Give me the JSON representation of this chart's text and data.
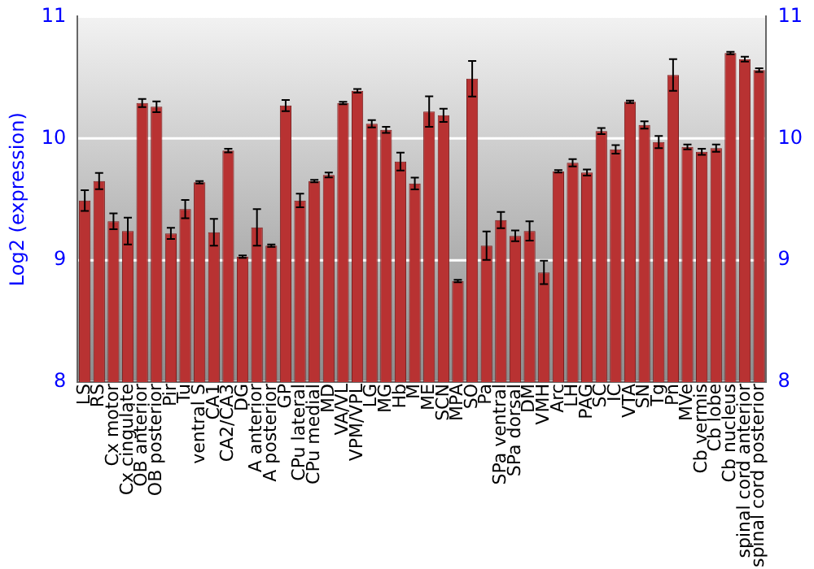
{
  "chart_data": {
    "type": "bar",
    "ylabel": "Log2 (expression)",
    "categories": [
      "LS",
      "RS",
      "Cx motor",
      "Cx cingulate",
      "OB anterior",
      "OB posterior",
      "Pir",
      "Tu",
      "ventral S",
      "CA1",
      "CA2/CA3",
      "DG",
      "A anterior",
      "A posterior",
      "GP",
      "CPu lateral",
      "CPu medial",
      "MD",
      "VA/VL",
      "VPM/VPL",
      "LG",
      "MG",
      "Hb",
      "M",
      "ME",
      "SCN",
      "MPA",
      "SO",
      "Pa",
      "SPa ventral",
      "SPa dorsal",
      "DM",
      "VMH",
      "Arc",
      "LH",
      "PAG",
      "SC",
      "IC",
      "VTA",
      "SN",
      "Tg",
      "Pn",
      "MVe",
      "Cb vermis",
      "Cb lobe",
      "Cb nucleus",
      "spinal cord anterior",
      "spinal cord posterior"
    ],
    "values": [
      9.49,
      9.65,
      9.32,
      9.24,
      10.29,
      10.26,
      9.22,
      9.42,
      9.64,
      9.23,
      9.9,
      9.03,
      9.27,
      9.12,
      10.27,
      9.49,
      9.65,
      9.7,
      10.29,
      10.39,
      10.12,
      10.07,
      9.81,
      9.63,
      10.22,
      10.19,
      8.83,
      10.49,
      9.12,
      9.33,
      9.2,
      9.24,
      8.9,
      9.73,
      9.8,
      9.72,
      10.06,
      9.91,
      10.3,
      10.11,
      9.97,
      10.52,
      9.93,
      9.89,
      9.92,
      10.7,
      10.65,
      10.56
    ],
    "errors": [
      0.085,
      0.067,
      0.065,
      0.11,
      0.033,
      0.044,
      0.046,
      0.075,
      0.01,
      0.11,
      0.015,
      0.01,
      0.15,
      0.01,
      0.046,
      0.056,
      0.01,
      0.02,
      0.01,
      0.015,
      0.03,
      0.025,
      0.073,
      0.048,
      0.125,
      0.054,
      0.01,
      0.146,
      0.117,
      0.067,
      0.044,
      0.079,
      0.096,
      0.01,
      0.03,
      0.025,
      0.025,
      0.035,
      0.01,
      0.03,
      0.05,
      0.13,
      0.02,
      0.025,
      0.03,
      0.01,
      0.02,
      0.015
    ],
    "color": "#b83232",
    "ylim": [
      8,
      11
    ],
    "yticks": [
      8,
      9,
      10,
      11
    ],
    "y2lim": [
      8,
      11
    ],
    "y2ticks": [
      8,
      9,
      10,
      11
    ],
    "grid": "y",
    "legend": false
  }
}
